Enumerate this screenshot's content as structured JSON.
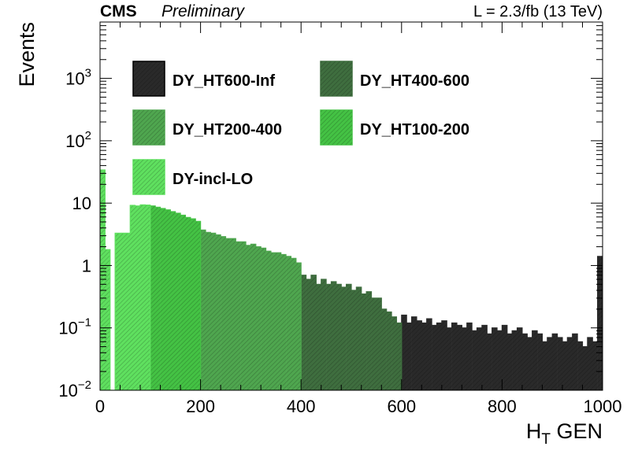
{
  "header": {
    "experiment": "CMS",
    "status": "Preliminary",
    "lumi": "L = 2.3/fb (13 TeV)"
  },
  "chart_data": {
    "type": "bar",
    "stacked": true,
    "log_y": true,
    "xlabel_main": "H",
    "xlabel_sub": "T",
    "xlabel_rest": " GEN",
    "ylabel": "Events",
    "xlim": [
      0,
      1000
    ],
    "ylim": [
      0.01,
      8000
    ],
    "x_ticks": [
      0,
      200,
      400,
      600,
      800,
      1000
    ],
    "x_tick_labels": [
      "0",
      "200",
      "400",
      "600",
      "800",
      "1000"
    ],
    "y_ticks": [
      {
        "value": 0.01,
        "base": "10",
        "exp": "−2"
      },
      {
        "value": 0.1,
        "base": "10",
        "exp": "−1"
      },
      {
        "value": 1,
        "base": "1",
        "exp": ""
      },
      {
        "value": 10,
        "base": "10",
        "exp": ""
      },
      {
        "value": 100,
        "base": "10",
        "exp": "2"
      },
      {
        "value": 1000,
        "base": "10",
        "exp": "3"
      }
    ],
    "legend_position": "top-left",
    "bin_width": 10,
    "series": [
      {
        "name": "DY_HT600-Inf",
        "color": "#2a2a2a",
        "x_start": 600,
        "x_end": 1000,
        "values": [
          0.16,
          0.12,
          0.15,
          0.13,
          0.12,
          0.14,
          0.11,
          0.12,
          0.13,
          0.1,
          0.12,
          0.11,
          0.1,
          0.12,
          0.09,
          0.1,
          0.11,
          0.08,
          0.1,
          0.09,
          0.11,
          0.08,
          0.09,
          0.1,
          0.08,
          0.07,
          0.09,
          0.08,
          0.06,
          0.07,
          0.08,
          0.07,
          0.06,
          0.07,
          0.08,
          0.06,
          0.05,
          0.07,
          0.06,
          1.4
        ]
      },
      {
        "name": "DY_HT400-600",
        "color": "#3f6e3f",
        "x_start": 400,
        "x_end": 600,
        "values": [
          0.7,
          0.6,
          0.7,
          0.5,
          0.6,
          0.5,
          0.55,
          0.5,
          0.45,
          0.5,
          0.4,
          0.45,
          0.35,
          0.38,
          0.3,
          0.3,
          0.2,
          0.18,
          0.15,
          0.12
        ]
      },
      {
        "name": "DY_HT200-400",
        "color": "#4fa64f",
        "x_start": 200,
        "x_end": 400,
        "values": [
          3.7,
          3.4,
          3.3,
          3.1,
          2.9,
          2.7,
          2.7,
          2.4,
          2.4,
          2.1,
          2.2,
          2.0,
          1.9,
          1.7,
          1.6,
          1.6,
          1.5,
          1.4,
          1.3,
          1.1
        ]
      },
      {
        "name": "DY_HT100-200",
        "color": "#44c244",
        "x_start": 100,
        "x_end": 200,
        "values": [
          9.0,
          8.6,
          8.2,
          7.8,
          7.3,
          6.9,
          6.4,
          5.9,
          5.6,
          5.1
        ]
      },
      {
        "name": "DY-incl-LO",
        "color": "#5fe05f",
        "x_start": 0,
        "x_end": 100,
        "values": [
          34,
          1.8,
          0.01,
          3.3,
          3.3,
          3.3,
          9.2,
          9.0,
          9.4,
          9.3
        ]
      }
    ]
  }
}
